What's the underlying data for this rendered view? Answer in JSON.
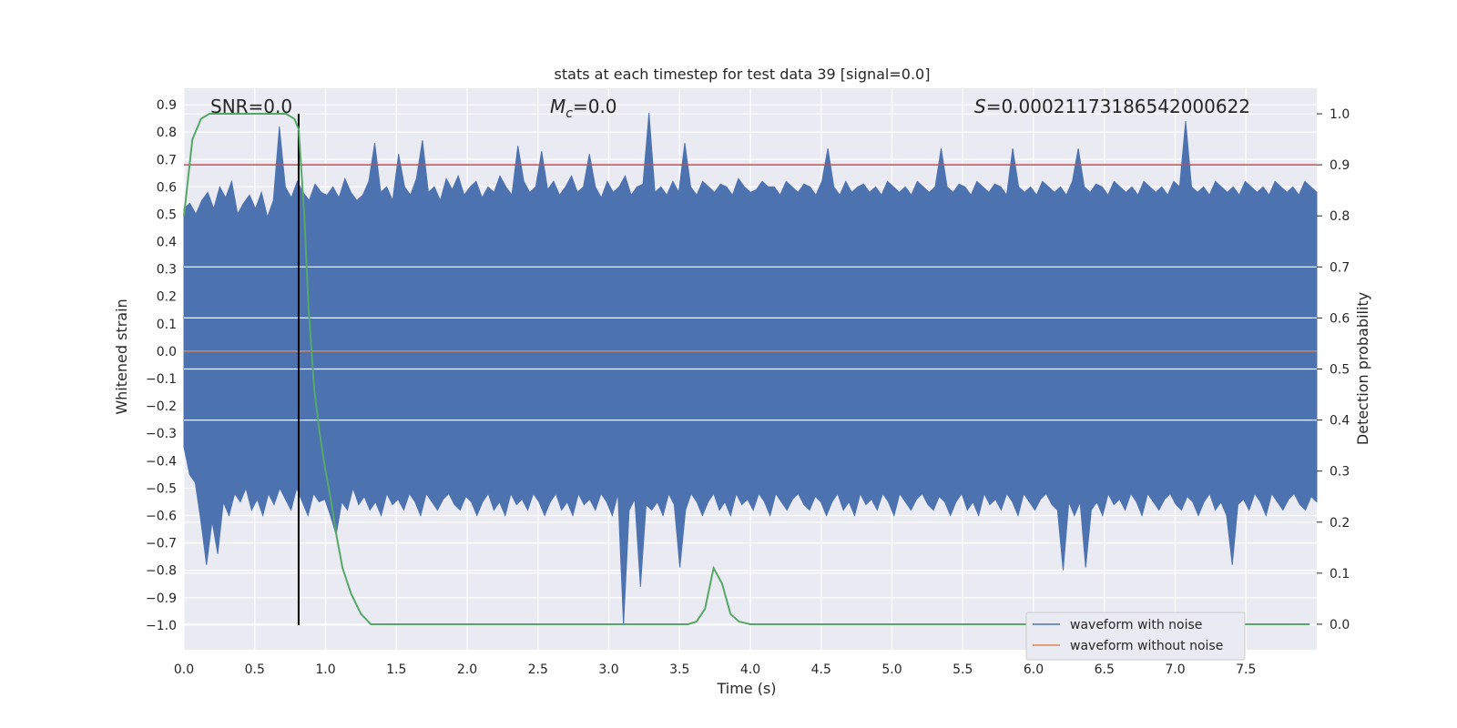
{
  "chart_data": {
    "type": "line",
    "title": "stats at each timestep for test data 39 [signal=0.0]",
    "xlabel": "Time (s)",
    "ylabel": "Whitened strain",
    "ylabel_right": "Detection probability",
    "xlim": [
      0.0,
      8.0
    ],
    "ylim": [
      -1.09,
      0.96
    ],
    "ylim_right": [
      -0.05,
      1.05
    ],
    "x_ticks": [
      "0.0",
      "0.5",
      "1.0",
      "1.5",
      "2.0",
      "2.5",
      "3.0",
      "3.5",
      "4.0",
      "4.5",
      "5.0",
      "5.5",
      "6.0",
      "6.5",
      "7.0",
      "7.5"
    ],
    "y_ticks": [
      "0.9",
      "0.8",
      "0.7",
      "0.6",
      "0.5",
      "0.4",
      "0.3",
      "0.2",
      "0.1",
      "0.0",
      "−0.1",
      "−0.2",
      "−0.3",
      "−0.4",
      "−0.5",
      "−0.6",
      "−0.7",
      "−0.8",
      "−0.9",
      "−1.0"
    ],
    "y_ticks_right": [
      "1.0",
      "0.9",
      "0.8",
      "0.7",
      "0.6",
      "0.5",
      "0.4",
      "0.3",
      "0.2",
      "0.1",
      "0.0"
    ],
    "annotations": {
      "snr": "SNR=0.0",
      "mc_symbol": "M",
      "mc_sub": "c",
      "mc_value": "=0.0",
      "s_symbol": "S",
      "s_value": "=0.00021173186542000622"
    },
    "threshold": {
      "value": 0.9,
      "axis": "right",
      "color": "#c44e52"
    },
    "marker_line": {
      "x": 0.81,
      "color": "#000000"
    },
    "series": [
      {
        "name": "waveform with noise",
        "color": "#4c72b0",
        "x_start": 0.0,
        "x_end": 8.0,
        "max_envelope": [
          0.52,
          0.54,
          0.5,
          0.55,
          0.58,
          0.52,
          0.6,
          0.56,
          0.62,
          0.5,
          0.54,
          0.57,
          0.52,
          0.58,
          0.49,
          0.55,
          0.82,
          0.6,
          0.56,
          0.62,
          0.58,
          0.55,
          0.61,
          0.58,
          0.57,
          0.6,
          0.56,
          0.63,
          0.58,
          0.55,
          0.57,
          0.62,
          0.76,
          0.58,
          0.6,
          0.55,
          0.72,
          0.6,
          0.57,
          0.63,
          0.77,
          0.58,
          0.6,
          0.55,
          0.63,
          0.59,
          0.64,
          0.57,
          0.6,
          0.62,
          0.56,
          0.6,
          0.58,
          0.64,
          0.6,
          0.57,
          0.75,
          0.62,
          0.58,
          0.6,
          0.73,
          0.59,
          0.62,
          0.57,
          0.6,
          0.64,
          0.58,
          0.6,
          0.72,
          0.6,
          0.56,
          0.62,
          0.58,
          0.6,
          0.64,
          0.57,
          0.6,
          0.61,
          0.87,
          0.58,
          0.6,
          0.57,
          0.62,
          0.58,
          0.76,
          0.6,
          0.57,
          0.62,
          0.6,
          0.58,
          0.61,
          0.6,
          0.57,
          0.63,
          0.6,
          0.58,
          0.59,
          0.62,
          0.6,
          0.6,
          0.57,
          0.62,
          0.6,
          0.58,
          0.61,
          0.6,
          0.57,
          0.62,
          0.74,
          0.6,
          0.57,
          0.62,
          0.58,
          0.6,
          0.61,
          0.58,
          0.6,
          0.57,
          0.62,
          0.6,
          0.58,
          0.6,
          0.57,
          0.62,
          0.6,
          0.58,
          0.6,
          0.74,
          0.6,
          0.58,
          0.61,
          0.6,
          0.57,
          0.62,
          0.6,
          0.58,
          0.61,
          0.6,
          0.57,
          0.74,
          0.6,
          0.58,
          0.6,
          0.57,
          0.62,
          0.6,
          0.58,
          0.6,
          0.57,
          0.62,
          0.74,
          0.6,
          0.58,
          0.61,
          0.6,
          0.57,
          0.62,
          0.6,
          0.58,
          0.6,
          0.57,
          0.62,
          0.6,
          0.58,
          0.6,
          0.57,
          0.62,
          0.6,
          0.84,
          0.6,
          0.58,
          0.6,
          0.57,
          0.62,
          0.6,
          0.58,
          0.6,
          0.57,
          0.62,
          0.6,
          0.58,
          0.6,
          0.57,
          0.62,
          0.6,
          0.58,
          0.6,
          0.57,
          0.62,
          0.6,
          0.58
        ],
        "min_envelope": [
          -0.35,
          -0.45,
          -0.48,
          -0.62,
          -0.78,
          -0.62,
          -0.74,
          -0.55,
          -0.6,
          -0.52,
          -0.55,
          -0.5,
          -0.58,
          -0.54,
          -0.6,
          -0.52,
          -0.56,
          -0.5,
          -0.54,
          -0.58,
          -0.5,
          -0.55,
          -0.6,
          -0.52,
          -0.55,
          -0.54,
          -0.6,
          -0.67,
          -0.55,
          -0.58,
          -0.5,
          -0.56,
          -0.53,
          -0.58,
          -0.55,
          -0.6,
          -0.52,
          -0.56,
          -0.54,
          -0.58,
          -0.52,
          -0.55,
          -0.6,
          -0.52,
          -0.55,
          -0.58,
          -0.54,
          -0.52,
          -0.56,
          -0.58,
          -0.53,
          -0.55,
          -0.6,
          -0.55,
          -0.52,
          -0.58,
          -0.55,
          -0.6,
          -0.52,
          -0.56,
          -0.54,
          -0.58,
          -0.52,
          -0.55,
          -0.6,
          -0.55,
          -0.52,
          -0.58,
          -0.55,
          -0.6,
          -0.52,
          -0.56,
          -0.54,
          -0.58,
          -0.52,
          -0.55,
          -0.6,
          -0.52,
          -1.0,
          -0.58,
          -0.54,
          -0.86,
          -0.56,
          -0.58,
          -0.55,
          -0.6,
          -0.52,
          -0.56,
          -0.79,
          -0.58,
          -0.52,
          -0.55,
          -0.6,
          -0.55,
          -0.52,
          -0.58,
          -0.55,
          -0.6,
          -0.52,
          -0.56,
          -0.54,
          -0.58,
          -0.52,
          -0.55,
          -0.6,
          -0.52,
          -0.55,
          -0.58,
          -0.54,
          -0.52,
          -0.56,
          -0.58,
          -0.53,
          -0.55,
          -0.6,
          -0.55,
          -0.52,
          -0.58,
          -0.55,
          -0.6,
          -0.52,
          -0.56,
          -0.54,
          -0.58,
          -0.52,
          -0.55,
          -0.6,
          -0.52,
          -0.55,
          -0.58,
          -0.54,
          -0.52,
          -0.56,
          -0.58,
          -0.53,
          -0.55,
          -0.6,
          -0.55,
          -0.52,
          -0.58,
          -0.55,
          -0.6,
          -0.52,
          -0.56,
          -0.54,
          -0.58,
          -0.52,
          -0.55,
          -0.6,
          -0.52,
          -0.55,
          -0.58,
          -0.54,
          -0.52,
          -0.56,
          -0.58,
          -0.8,
          -0.55,
          -0.6,
          -0.55,
          -0.79,
          -0.58,
          -0.55,
          -0.6,
          -0.52,
          -0.56,
          -0.54,
          -0.58,
          -0.52,
          -0.55,
          -0.6,
          -0.52,
          -0.55,
          -0.58,
          -0.54,
          -0.52,
          -0.56,
          -0.58,
          -0.53,
          -0.55,
          -0.6,
          -0.55,
          -0.52,
          -0.58,
          -0.55,
          -0.6,
          -0.78,
          -0.56,
          -0.54,
          -0.58,
          -0.52,
          -0.55,
          -0.6,
          -0.52,
          -0.55,
          -0.58,
          -0.54,
          -0.52,
          -0.56,
          -0.58,
          -0.53,
          -0.55
        ]
      },
      {
        "name": "waveform without noise",
        "color": "#dd8452",
        "x": [
          0.0,
          8.0
        ],
        "y": [
          0.0,
          0.0
        ]
      },
      {
        "name": "detection probability",
        "axis": "right",
        "color": "#55a868",
        "x": [
          0.0,
          0.06,
          0.12,
          0.18,
          0.25,
          0.35,
          0.45,
          0.55,
          0.65,
          0.72,
          0.78,
          0.81,
          0.85,
          0.88,
          0.92,
          0.96,
          1.0,
          1.04,
          1.08,
          1.12,
          1.18,
          1.25,
          1.32,
          1.45,
          1.6,
          1.75,
          2.0,
          2.5,
          3.0,
          3.5,
          3.56,
          3.62,
          3.68,
          3.74,
          3.8,
          3.86,
          3.92,
          4.0,
          4.5,
          5.0,
          5.5,
          6.0,
          6.5,
          7.0,
          7.5,
          7.95
        ],
        "y": [
          0.8,
          0.95,
          0.99,
          1.0,
          1.0,
          1.0,
          1.0,
          1.0,
          1.0,
          1.0,
          0.99,
          0.97,
          0.8,
          0.62,
          0.46,
          0.37,
          0.3,
          0.24,
          0.17,
          0.11,
          0.06,
          0.02,
          0.0,
          0.0,
          0.0,
          0.0,
          0.0,
          0.0,
          0.0,
          0.0,
          0.0,
          0.005,
          0.03,
          0.11,
          0.08,
          0.02,
          0.005,
          0.0,
          0.0,
          0.0,
          0.0,
          0.0,
          0.0,
          0.0,
          0.0,
          0.0
        ]
      }
    ],
    "legend": {
      "position": "lower-right",
      "entries": [
        {
          "label": "waveform with noise",
          "color": "#4c72b0"
        },
        {
          "label": "waveform without noise",
          "color": "#dd8452"
        }
      ]
    }
  }
}
